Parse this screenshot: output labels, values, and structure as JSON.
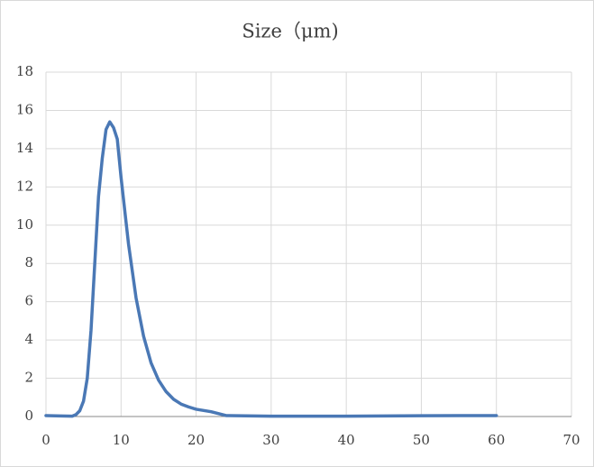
{
  "chart_data": {
    "type": "line",
    "title": "Size（μm)",
    "x": [
      0,
      2,
      3.5,
      4,
      4.5,
      5,
      5.5,
      6,
      6.5,
      7,
      7.5,
      8,
      8.5,
      9,
      9.5,
      10,
      11,
      12,
      13,
      14,
      15,
      16,
      17,
      18,
      19,
      20,
      22,
      23,
      24,
      30,
      40,
      50,
      60
    ],
    "series": [
      {
        "color": "#4a78b5",
        "values": [
          0.05,
          0.03,
          0.02,
          0.1,
          0.3,
          0.8,
          2,
          4.5,
          8,
          11.5,
          13.5,
          15,
          15.4,
          15.1,
          14.5,
          12.5,
          9,
          6.2,
          4.2,
          2.8,
          1.9,
          1.3,
          0.9,
          0.65,
          0.5,
          0.38,
          0.25,
          0.15,
          0.05,
          0.02,
          0.02,
          0.04,
          0.05
        ]
      }
    ],
    "xlim": [
      0,
      70
    ],
    "xticks": [
      0,
      10,
      20,
      30,
      40,
      50,
      60,
      70
    ],
    "ylim": [
      0,
      18
    ],
    "yticks": [
      0,
      2,
      4,
      6,
      8,
      10,
      12,
      14,
      16,
      18
    ],
    "grid": true
  }
}
